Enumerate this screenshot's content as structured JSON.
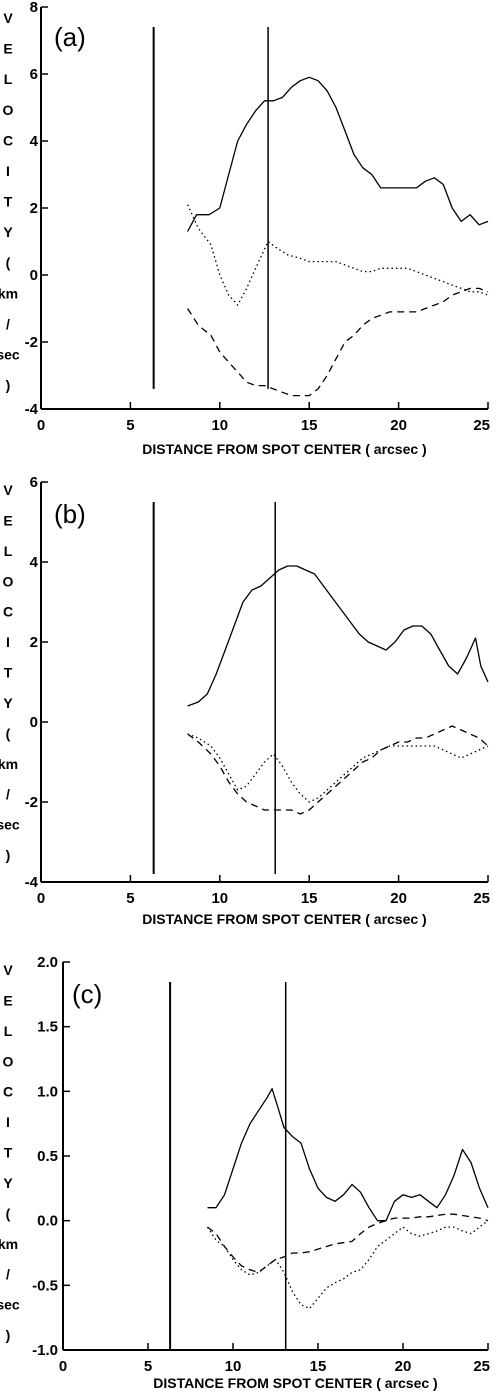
{
  "chart_data": [
    {
      "type": "line",
      "panel_label": "(a)",
      "xlabel": "DISTANCE FROM SPOT CENTER ( arcsec )",
      "ylabel": "VELOCITY (km/sec)",
      "ylabel_letters": [
        "V",
        "E",
        "L",
        "O",
        "C",
        "I",
        "T",
        "Y",
        "(",
        "km",
        "/",
        "sec",
        ")"
      ],
      "xlim": [
        0,
        25
      ],
      "ylim": [
        -4,
        8
      ],
      "xticks": [
        0,
        5,
        10,
        15,
        20,
        25
      ],
      "xtick_labels": [
        "0",
        "5",
        "10",
        "15",
        "20",
        "25"
      ],
      "yticks": [
        -4,
        -2,
        0,
        2,
        4,
        6,
        8
      ],
      "ytick_labels": [
        "-4",
        "-2",
        "0",
        "2",
        "4",
        "6",
        "8"
      ],
      "vlines": [
        6.3,
        12.7
      ],
      "vline_bottom": [
        -3.4,
        -3.4
      ],
      "series": [
        {
          "style": "solid",
          "x": [
            8.2,
            8.7,
            9.4,
            10.0,
            10.5,
            11.0,
            11.5,
            12.0,
            12.5,
            13.0,
            13.5,
            14.0,
            14.5,
            15.0,
            15.5,
            16.0,
            16.5,
            17.0,
            17.5,
            18.0,
            18.5,
            19.0,
            19.5,
            20.0,
            20.5,
            21.0,
            21.5,
            22.0,
            22.5,
            23.0,
            23.5,
            24.0,
            24.5,
            25.0
          ],
          "y": [
            1.3,
            1.8,
            1.8,
            2.0,
            3.0,
            4.0,
            4.5,
            4.9,
            5.2,
            5.2,
            5.3,
            5.6,
            5.8,
            5.9,
            5.8,
            5.5,
            5.0,
            4.3,
            3.6,
            3.2,
            3.0,
            2.6,
            2.6,
            2.6,
            2.6,
            2.6,
            2.8,
            2.9,
            2.7,
            2.0,
            1.6,
            1.8,
            1.5,
            1.6
          ]
        },
        {
          "style": "dotted",
          "x": [
            8.2,
            8.8,
            9.5,
            10.0,
            10.5,
            11.0,
            11.5,
            12.0,
            12.7,
            13.2,
            13.8,
            14.5,
            15.0,
            15.5,
            16.0,
            16.5,
            17.0,
            17.5,
            18.0,
            18.5,
            19.0,
            19.5,
            20.0,
            20.5,
            21.0,
            21.5,
            22.0,
            22.5,
            23.0,
            23.5,
            24.0,
            24.5,
            25.0
          ],
          "y": [
            2.1,
            1.4,
            0.9,
            0.0,
            -0.6,
            -0.9,
            -0.4,
            0.2,
            1.0,
            0.8,
            0.6,
            0.5,
            0.4,
            0.4,
            0.4,
            0.4,
            0.3,
            0.2,
            0.1,
            0.1,
            0.2,
            0.2,
            0.2,
            0.2,
            0.1,
            0.0,
            -0.1,
            -0.2,
            -0.3,
            -0.4,
            -0.5,
            -0.5,
            -0.6
          ]
        },
        {
          "style": "dashed",
          "x": [
            8.2,
            8.8,
            9.5,
            10.0,
            10.5,
            11.0,
            11.5,
            12.0,
            12.5,
            13.0,
            13.5,
            14.0,
            14.5,
            15.0,
            15.5,
            16.0,
            16.5,
            17.0,
            17.5,
            18.0,
            18.5,
            19.0,
            19.5,
            20.0,
            20.5,
            21.0,
            21.5,
            22.0,
            22.5,
            23.0,
            23.5,
            24.0,
            24.5,
            25.0
          ],
          "y": [
            -1.0,
            -1.5,
            -1.8,
            -2.3,
            -2.6,
            -2.9,
            -3.2,
            -3.3,
            -3.3,
            -3.4,
            -3.5,
            -3.6,
            -3.6,
            -3.6,
            -3.4,
            -3.0,
            -2.5,
            -2.0,
            -1.8,
            -1.5,
            -1.3,
            -1.2,
            -1.1,
            -1.1,
            -1.1,
            -1.1,
            -1.0,
            -0.9,
            -0.8,
            -0.6,
            -0.5,
            -0.4,
            -0.4,
            -0.5
          ]
        }
      ]
    },
    {
      "type": "line",
      "panel_label": "(b)",
      "xlabel": "DISTANCE FROM SPOT CENTER ( arcsec )",
      "ylabel": "VELOCITY (km/sec)",
      "ylabel_letters": [
        "V",
        "E",
        "L",
        "O",
        "C",
        "I",
        "T",
        "Y",
        "(",
        "km",
        "/",
        "sec",
        ")"
      ],
      "xlim": [
        0,
        25
      ],
      "ylim": [
        -4,
        6
      ],
      "xticks": [
        0,
        5,
        10,
        15,
        20,
        25
      ],
      "xtick_labels": [
        "0",
        "5",
        "10",
        "15",
        "20",
        "25"
      ],
      "yticks": [
        -4,
        -2,
        0,
        2,
        4,
        6
      ],
      "ytick_labels": [
        "-4",
        "-2",
        "0",
        "2",
        "4",
        "6"
      ],
      "vlines": [
        6.3,
        13.1
      ],
      "vline_bottom": [
        -3.8,
        -3.8
      ],
      "series": [
        {
          "style": "solid",
          "x": [
            8.2,
            8.8,
            9.3,
            9.8,
            10.3,
            10.8,
            11.3,
            11.8,
            12.3,
            12.8,
            13.3,
            13.8,
            14.3,
            14.8,
            15.3,
            15.8,
            16.3,
            16.8,
            17.3,
            17.8,
            18.3,
            18.8,
            19.3,
            19.8,
            20.3,
            20.8,
            21.3,
            21.8,
            22.3,
            22.8,
            23.3,
            23.8,
            24.3,
            24.6,
            25.0
          ],
          "y": [
            0.4,
            0.5,
            0.7,
            1.2,
            1.8,
            2.4,
            3.0,
            3.3,
            3.4,
            3.6,
            3.8,
            3.9,
            3.9,
            3.8,
            3.7,
            3.4,
            3.1,
            2.8,
            2.5,
            2.2,
            2.0,
            1.9,
            1.8,
            2.0,
            2.3,
            2.4,
            2.4,
            2.2,
            1.8,
            1.4,
            1.2,
            1.6,
            2.1,
            1.4,
            1.0
          ]
        },
        {
          "style": "dotted",
          "x": [
            8.2,
            8.8,
            9.5,
            10.0,
            10.5,
            11.0,
            11.5,
            12.0,
            12.5,
            13.0,
            13.5,
            14.0,
            14.5,
            15.0,
            15.5,
            16.0,
            16.5,
            17.0,
            17.5,
            18.0,
            18.5,
            19.0,
            19.5,
            20.0,
            20.5,
            21.0,
            21.5,
            22.0,
            22.5,
            23.0,
            23.5,
            24.0,
            24.5,
            25.0
          ],
          "y": [
            -0.3,
            -0.4,
            -0.6,
            -0.9,
            -1.3,
            -1.7,
            -1.6,
            -1.3,
            -1.0,
            -0.8,
            -1.1,
            -1.5,
            -1.8,
            -2.0,
            -1.9,
            -1.7,
            -1.5,
            -1.3,
            -1.1,
            -0.9,
            -0.8,
            -0.7,
            -0.6,
            -0.6,
            -0.6,
            -0.6,
            -0.6,
            -0.6,
            -0.7,
            -0.8,
            -0.9,
            -0.8,
            -0.7,
            -0.6
          ]
        },
        {
          "style": "dashed",
          "x": [
            8.2,
            8.8,
            9.5,
            10.0,
            10.5,
            11.0,
            11.5,
            12.0,
            12.5,
            13.0,
            13.5,
            14.0,
            14.5,
            15.0,
            15.5,
            16.0,
            16.5,
            17.0,
            17.5,
            18.0,
            18.5,
            19.0,
            19.5,
            20.0,
            20.5,
            21.0,
            21.5,
            22.0,
            22.5,
            23.0,
            23.5,
            24.0,
            24.5,
            25.0
          ],
          "y": [
            -0.3,
            -0.5,
            -0.8,
            -1.1,
            -1.5,
            -1.8,
            -2.0,
            -2.1,
            -2.2,
            -2.2,
            -2.2,
            -2.2,
            -2.3,
            -2.2,
            -2.0,
            -1.8,
            -1.6,
            -1.4,
            -1.2,
            -1.0,
            -0.9,
            -0.7,
            -0.6,
            -0.5,
            -0.5,
            -0.4,
            -0.4,
            -0.3,
            -0.2,
            -0.1,
            -0.2,
            -0.3,
            -0.4,
            -0.6
          ]
        }
      ]
    },
    {
      "type": "line",
      "panel_label": "(c)",
      "xlabel": "DISTANCE FROM SPOT CENTER ( arcsec )",
      "ylabel": "VELOCITY (km/sec)",
      "ylabel_letters": [
        "V",
        "E",
        "L",
        "O",
        "C",
        "I",
        "T",
        "Y",
        "(",
        "km",
        "/",
        "sec",
        ")"
      ],
      "xlim": [
        0,
        25
      ],
      "ylim": [
        -1.0,
        2.0
      ],
      "xticks": [
        0,
        5,
        10,
        15,
        20,
        25
      ],
      "xtick_labels": [
        "0",
        "5",
        "10",
        "15",
        "20",
        "25"
      ],
      "yticks": [
        -1.0,
        -0.5,
        0.0,
        0.5,
        1.0,
        1.5,
        2.0
      ],
      "ytick_labels": [
        "-1.0",
        "-0.5",
        "0.0",
        "0.5",
        "1.0",
        "1.5",
        "2.0"
      ],
      "vlines": [
        6.3,
        13.1
      ],
      "vline_bottom": [
        -1.0,
        -1.0
      ],
      "series": [
        {
          "style": "solid",
          "x": [
            8.5,
            9.0,
            9.5,
            10.0,
            10.5,
            11.0,
            11.5,
            12.0,
            12.3,
            12.7,
            13.0,
            13.5,
            14.0,
            14.5,
            15.0,
            15.5,
            16.0,
            16.5,
            17.0,
            17.5,
            18.0,
            18.5,
            19.0,
            19.5,
            20.0,
            20.5,
            21.0,
            21.5,
            22.0,
            22.5,
            23.0,
            23.5,
            24.0,
            24.5,
            25.0
          ],
          "y": [
            0.1,
            0.1,
            0.2,
            0.4,
            0.6,
            0.75,
            0.85,
            0.95,
            1.02,
            0.85,
            0.72,
            0.65,
            0.6,
            0.4,
            0.25,
            0.18,
            0.15,
            0.2,
            0.28,
            0.22,
            0.1,
            0.0,
            0.0,
            0.15,
            0.2,
            0.18,
            0.2,
            0.15,
            0.1,
            0.2,
            0.35,
            0.55,
            0.45,
            0.25,
            0.1
          ]
        },
        {
          "style": "dotted",
          "x": [
            8.5,
            9.0,
            9.5,
            10.0,
            10.5,
            11.0,
            11.5,
            12.0,
            12.5,
            13.0,
            13.5,
            14.0,
            14.5,
            15.0,
            15.5,
            16.0,
            16.5,
            17.0,
            17.5,
            18.0,
            18.5,
            19.0,
            19.5,
            20.0,
            20.5,
            21.0,
            21.5,
            22.0,
            22.5,
            23.0,
            23.5,
            24.0,
            24.5,
            25.0
          ],
          "y": [
            -0.05,
            -0.15,
            -0.2,
            -0.3,
            -0.38,
            -0.42,
            -0.4,
            -0.35,
            -0.3,
            -0.4,
            -0.55,
            -0.65,
            -0.68,
            -0.6,
            -0.52,
            -0.48,
            -0.45,
            -0.4,
            -0.38,
            -0.3,
            -0.2,
            -0.15,
            -0.1,
            -0.05,
            -0.1,
            -0.12,
            -0.1,
            -0.08,
            -0.05,
            -0.05,
            -0.08,
            -0.1,
            -0.05,
            0.0
          ]
        },
        {
          "style": "dashed",
          "x": [
            8.5,
            9.0,
            9.5,
            10.0,
            10.5,
            11.0,
            11.5,
            12.0,
            12.5,
            13.0,
            13.5,
            14.0,
            14.5,
            15.0,
            15.5,
            16.0,
            16.5,
            17.0,
            17.5,
            18.0,
            18.5,
            19.0,
            19.5,
            20.0,
            20.5,
            21.0,
            21.5,
            22.0,
            22.5,
            23.0,
            23.5,
            24.0,
            24.5,
            25.0
          ],
          "y": [
            -0.05,
            -0.1,
            -0.2,
            -0.28,
            -0.35,
            -0.38,
            -0.4,
            -0.35,
            -0.3,
            -0.28,
            -0.25,
            -0.25,
            -0.24,
            -0.22,
            -0.2,
            -0.18,
            -0.17,
            -0.16,
            -0.1,
            -0.05,
            -0.02,
            0.0,
            0.02,
            0.02,
            0.02,
            0.03,
            0.03,
            0.04,
            0.05,
            0.05,
            0.04,
            0.03,
            0.02,
            0.0
          ]
        }
      ]
    }
  ]
}
